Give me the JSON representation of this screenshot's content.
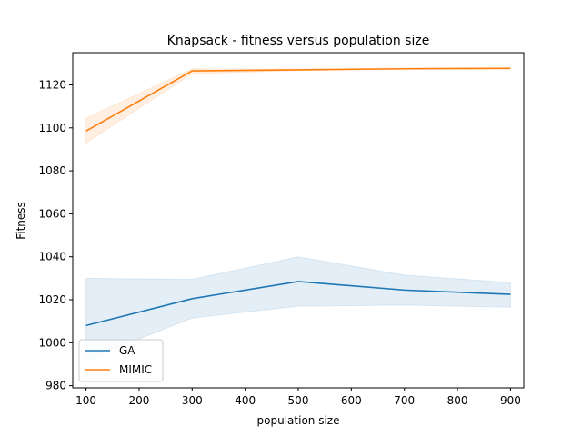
{
  "chart_data": {
    "type": "line",
    "title": "Knapsack - fitness versus population size",
    "xlabel": "population size",
    "ylabel": "Fitness",
    "xlim": [
      75,
      925
    ],
    "ylim": [
      979,
      1135
    ],
    "xticks": [
      100,
      200,
      300,
      400,
      500,
      600,
      700,
      800,
      900
    ],
    "yticks": [
      980,
      1000,
      1020,
      1040,
      1060,
      1080,
      1100,
      1120
    ],
    "grid": false,
    "legend": "lower-left",
    "x": [
      100,
      300,
      500,
      700,
      900
    ],
    "series": [
      {
        "name": "GA",
        "color": "#1f77b4",
        "values": [
          1008,
          1020.5,
          1028.5,
          1024.5,
          1022.5
        ],
        "ci_lower": [
          992,
          1011.5,
          1017,
          1017.5,
          1016.5
        ],
        "ci_upper": [
          1030,
          1029.5,
          1040,
          1031.5,
          1028
        ]
      },
      {
        "name": "MIMIC",
        "color": "#ff7f0e",
        "values": [
          1098.5,
          1126.5,
          1127,
          1127.5,
          1127.7
        ],
        "ci_lower": [
          1093,
          1125.2,
          1126.7,
          1127.2,
          1127.5
        ],
        "ci_upper": [
          1104.5,
          1127.5,
          1127.4,
          1127.8,
          1128
        ]
      }
    ]
  }
}
